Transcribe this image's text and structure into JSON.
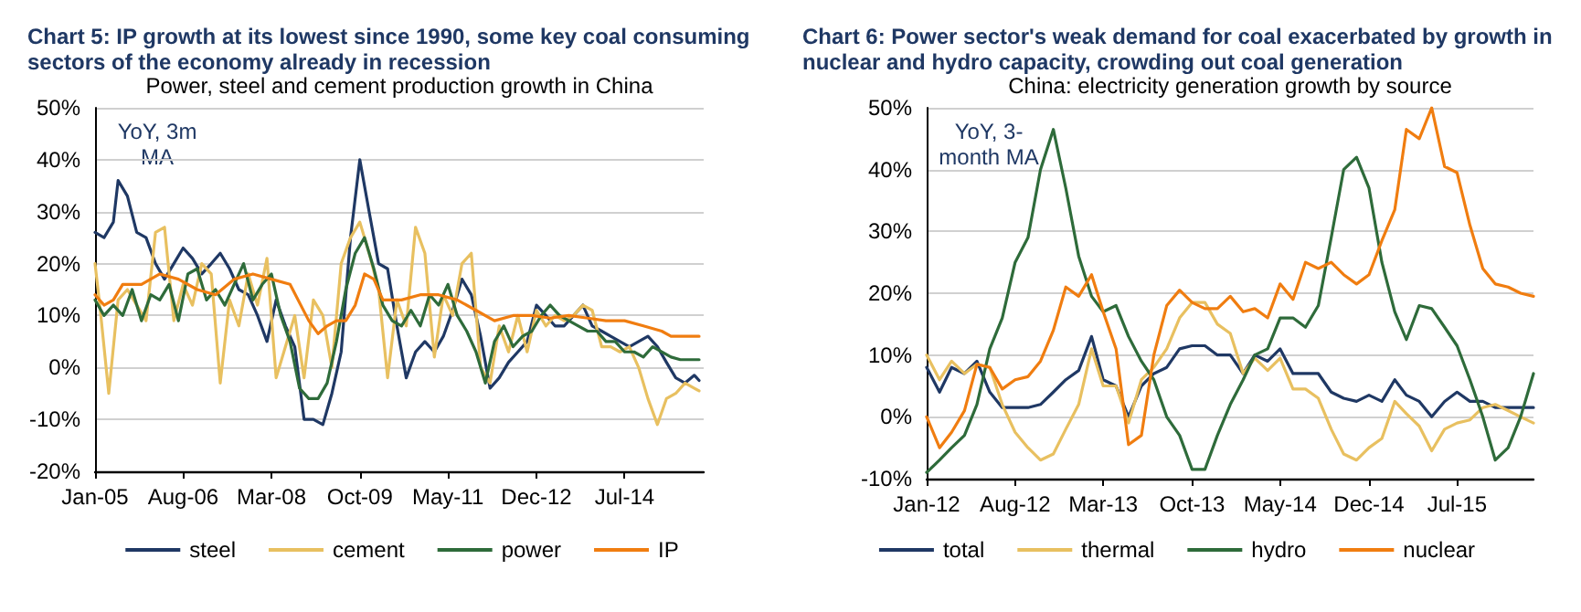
{
  "chart_data": [
    {
      "type": "line",
      "title": "Chart 5: IP growth at its lowest since 1990, some key coal consuming sectors of the economy already in recession",
      "subtitle": "Power, steel and cement production growth in China",
      "annotations": [
        "YoY, 3m\nMA"
      ],
      "xlim": [
        "2005-01",
        "2015-12"
      ],
      "xticks": [
        {
          "value": "2005-01",
          "label": "Jan-05"
        },
        {
          "value": "2006-08",
          "label": "Aug-06"
        },
        {
          "value": "2008-03",
          "label": "Mar-08"
        },
        {
          "value": "2009-10",
          "label": "Oct-09"
        },
        {
          "value": "2011-05",
          "label": "May-11"
        },
        {
          "value": "2012-12",
          "label": "Dec-12"
        },
        {
          "value": "2014-07",
          "label": "Jul-14"
        }
      ],
      "ylim": [
        -20,
        50
      ],
      "yticks": [
        {
          "value": -20,
          "label": "-20%"
        },
        {
          "value": -10,
          "label": "-10%"
        },
        {
          "value": 0,
          "label": "0%"
        },
        {
          "value": 10,
          "label": "10%"
        },
        {
          "value": 20,
          "label": "20%"
        },
        {
          "value": 30,
          "label": "30%"
        },
        {
          "value": 40,
          "label": "40%"
        },
        {
          "value": 50,
          "label": "50%"
        }
      ],
      "grid": "y",
      "legend": "bottom",
      "marker": "none",
      "line_style": "solid",
      "series": [
        {
          "name": "steel",
          "color": "#1f3864",
          "x": [
            "2005-01",
            "2005-03",
            "2005-05",
            "2005-06",
            "2005-08",
            "2005-10",
            "2005-12",
            "2006-02",
            "2006-04",
            "2006-06",
            "2006-08",
            "2006-10",
            "2006-12",
            "2007-02",
            "2007-04",
            "2007-06",
            "2007-08",
            "2007-10",
            "2007-12",
            "2008-02",
            "2008-04",
            "2008-06",
            "2008-08",
            "2008-10",
            "2008-12",
            "2009-02",
            "2009-04",
            "2009-06",
            "2009-08",
            "2009-10",
            "2009-12",
            "2010-02",
            "2010-04",
            "2010-06",
            "2010-08",
            "2010-10",
            "2010-12",
            "2011-02",
            "2011-04",
            "2011-06",
            "2011-08",
            "2011-10",
            "2011-12",
            "2012-02",
            "2012-04",
            "2012-06",
            "2012-08",
            "2012-10",
            "2012-12",
            "2013-02",
            "2013-04",
            "2013-06",
            "2013-08",
            "2013-10",
            "2013-12",
            "2014-02",
            "2014-04",
            "2014-06",
            "2014-08",
            "2014-10",
            "2014-12",
            "2015-02",
            "2015-04",
            "2015-06",
            "2015-08",
            "2015-10",
            "2015-11"
          ],
          "values": [
            26,
            25,
            28,
            36,
            33,
            26,
            25,
            20,
            17,
            20,
            23,
            21,
            18,
            20,
            22,
            19,
            15,
            14,
            10,
            5,
            13,
            8,
            4,
            -10,
            -10,
            -11,
            -5,
            3,
            25,
            40,
            30,
            20,
            19,
            8,
            -2,
            3,
            5,
            3,
            6,
            11,
            17,
            14,
            6,
            -4,
            -2,
            1,
            3,
            5,
            12,
            10,
            8,
            8,
            10,
            12,
            8,
            7,
            6,
            5,
            4,
            5,
            6,
            4,
            1,
            -2,
            -3,
            -1.5,
            -2.5
          ]
        },
        {
          "name": "cement",
          "color": "#e8c060",
          "x": [
            "2005-01",
            "2005-02",
            "2005-04",
            "2005-06",
            "2005-08",
            "2005-10",
            "2005-12",
            "2006-02",
            "2006-04",
            "2006-06",
            "2006-08",
            "2006-10",
            "2006-12",
            "2007-02",
            "2007-04",
            "2007-06",
            "2007-08",
            "2007-10",
            "2007-12",
            "2008-02",
            "2008-04",
            "2008-06",
            "2008-08",
            "2008-10",
            "2008-12",
            "2009-02",
            "2009-04",
            "2009-06",
            "2009-08",
            "2009-10",
            "2009-12",
            "2010-02",
            "2010-04",
            "2010-06",
            "2010-08",
            "2010-10",
            "2010-12",
            "2011-02",
            "2011-04",
            "2011-06",
            "2011-08",
            "2011-10",
            "2011-12",
            "2012-02",
            "2012-04",
            "2012-06",
            "2012-08",
            "2012-10",
            "2012-12",
            "2013-02",
            "2013-04",
            "2013-06",
            "2013-08",
            "2013-10",
            "2013-12",
            "2014-02",
            "2014-04",
            "2014-06",
            "2014-08",
            "2014-10",
            "2014-12",
            "2015-02",
            "2015-04",
            "2015-06",
            "2015-08",
            "2015-10",
            "2015-11"
          ],
          "values": [
            20,
            12,
            -5,
            13,
            15,
            12,
            9,
            26,
            27,
            9,
            16,
            12,
            20,
            18,
            -3,
            13,
            8,
            18,
            12,
            21,
            -2,
            4,
            10,
            -2,
            13,
            10,
            0,
            20,
            25,
            28,
            22,
            15,
            -2,
            13,
            8,
            27,
            22,
            2,
            14,
            10,
            20,
            22,
            0,
            -3,
            8,
            3,
            10,
            3,
            11,
            8,
            10,
            9,
            10,
            12,
            11,
            4,
            4,
            3,
            4,
            0,
            -6,
            -11,
            -6,
            -5,
            -3,
            -4,
            -4.5
          ]
        },
        {
          "name": "power",
          "color": "#2e6b3a",
          "x": [
            "2005-01",
            "2005-03",
            "2005-05",
            "2005-07",
            "2005-09",
            "2005-11",
            "2006-01",
            "2006-03",
            "2006-05",
            "2006-07",
            "2006-09",
            "2006-11",
            "2007-01",
            "2007-03",
            "2007-05",
            "2007-07",
            "2007-09",
            "2007-11",
            "2008-01",
            "2008-03",
            "2008-05",
            "2008-07",
            "2008-09",
            "2008-11",
            "2009-01",
            "2009-03",
            "2009-05",
            "2009-07",
            "2009-09",
            "2009-11",
            "2010-01",
            "2010-03",
            "2010-05",
            "2010-07",
            "2010-09",
            "2010-11",
            "2011-01",
            "2011-03",
            "2011-05",
            "2011-07",
            "2011-09",
            "2011-11",
            "2012-01",
            "2012-03",
            "2012-05",
            "2012-07",
            "2012-09",
            "2012-11",
            "2013-01",
            "2013-03",
            "2013-05",
            "2013-07",
            "2013-09",
            "2013-11",
            "2014-01",
            "2014-03",
            "2014-05",
            "2014-07",
            "2014-09",
            "2014-11",
            "2015-01",
            "2015-03",
            "2015-05",
            "2015-07",
            "2015-09",
            "2015-11"
          ],
          "values": [
            13,
            10,
            12,
            10,
            15,
            9,
            14,
            13,
            16,
            9,
            18,
            19,
            13,
            15,
            12,
            16,
            20,
            13,
            16,
            18,
            10,
            5,
            -4,
            -6,
            -6,
            -3,
            5,
            15,
            22,
            25,
            19,
            12,
            9,
            8,
            11,
            8,
            14,
            12,
            16,
            10,
            7,
            3,
            -3,
            5,
            8,
            4,
            6,
            7,
            10,
            12,
            10,
            9,
            8,
            7,
            7,
            5,
            5,
            3,
            3,
            2,
            4,
            3,
            2,
            1.5,
            1.5,
            1.5
          ]
        },
        {
          "name": "IP",
          "color": "#f07d10",
          "x": [
            "2005-01",
            "2005-03",
            "2005-05",
            "2005-07",
            "2005-11",
            "2006-03",
            "2006-07",
            "2006-11",
            "2007-03",
            "2007-07",
            "2007-11",
            "2008-03",
            "2008-07",
            "2008-11",
            "2009-01",
            "2009-03",
            "2009-05",
            "2009-07",
            "2009-09",
            "2009-11",
            "2010-01",
            "2010-03",
            "2010-07",
            "2010-11",
            "2011-03",
            "2011-07",
            "2011-11",
            "2012-03",
            "2012-07",
            "2012-11",
            "2013-03",
            "2013-07",
            "2013-11",
            "2014-03",
            "2014-07",
            "2014-11",
            "2015-03",
            "2015-05",
            "2015-07",
            "2015-11"
          ],
          "values": [
            14,
            12,
            13,
            16,
            16,
            18,
            17,
            15,
            14,
            17,
            18,
            17,
            16,
            9,
            6.5,
            8,
            9,
            9,
            12,
            18,
            17,
            13,
            13,
            14,
            14,
            13,
            11,
            9,
            10,
            10,
            9.5,
            10,
            9.5,
            9,
            9,
            8,
            7,
            6,
            6,
            6
          ]
        }
      ]
    },
    {
      "type": "line",
      "title": "Chart 6: Power sector's weak demand for coal exacerbated by growth in nuclear and hydro capacity, crowding out coal generation",
      "subtitle": "China: electricity generation growth by source",
      "annotations": [
        "YoY, 3-\nmonth MA"
      ],
      "x": [
        "2012-01",
        "2012-02",
        "2012-03",
        "2012-04",
        "2012-05",
        "2012-06",
        "2012-07",
        "2012-08",
        "2012-09",
        "2012-10",
        "2012-11",
        "2012-12",
        "2013-01",
        "2013-02",
        "2013-03",
        "2013-04",
        "2013-05",
        "2013-06",
        "2013-07",
        "2013-08",
        "2013-09",
        "2013-10",
        "2013-11",
        "2013-12",
        "2014-01",
        "2014-02",
        "2014-03",
        "2014-04",
        "2014-05",
        "2014-06",
        "2014-07",
        "2014-08",
        "2014-09",
        "2014-10",
        "2014-11",
        "2014-12",
        "2015-01",
        "2015-02",
        "2015-03",
        "2015-04",
        "2015-05",
        "2015-06",
        "2015-07",
        "2015-08",
        "2015-09",
        "2015-10",
        "2015-11",
        "2015-12",
        "2016-01"
      ],
      "xlim": [
        "2012-01",
        "2016-01"
      ],
      "xticks": [
        {
          "value": "2012-01",
          "label": "Jan-12"
        },
        {
          "value": "2012-08",
          "label": "Aug-12"
        },
        {
          "value": "2013-03",
          "label": "Mar-13"
        },
        {
          "value": "2013-10",
          "label": "Oct-13"
        },
        {
          "value": "2014-05",
          "label": "May-14"
        },
        {
          "value": "2014-12",
          "label": "Dec-14"
        },
        {
          "value": "2015-07",
          "label": "Jul-15"
        }
      ],
      "ylim": [
        -10,
        50
      ],
      "yticks": [
        {
          "value": -10,
          "label": "-10%"
        },
        {
          "value": 0,
          "label": "0%"
        },
        {
          "value": 10,
          "label": "10%"
        },
        {
          "value": 20,
          "label": "20%"
        },
        {
          "value": 30,
          "label": "30%"
        },
        {
          "value": 40,
          "label": "40%"
        },
        {
          "value": 50,
          "label": "50%"
        }
      ],
      "grid": "y",
      "legend": "bottom",
      "marker": "none",
      "line_style": "solid",
      "series": [
        {
          "name": "total",
          "color": "#1f3864",
          "values": [
            8,
            4,
            8,
            7,
            9,
            4,
            1.5,
            1.5,
            1.5,
            2,
            4,
            6,
            7.5,
            13,
            6,
            5,
            0,
            5,
            7,
            8,
            11,
            11.5,
            11.5,
            10,
            10,
            7,
            10,
            9,
            11,
            7,
            7,
            7,
            4,
            3,
            2.5,
            3.5,
            2.5,
            6,
            3.5,
            2.5,
            0,
            2.5,
            4,
            2.5,
            2.5,
            1.5,
            1.5,
            1.5,
            1.5
          ]
        },
        {
          "name": "thermal",
          "color": "#e8c060",
          "values": [
            10,
            6,
            9,
            7,
            8.5,
            8,
            2,
            -2.5,
            -5,
            -7,
            -6,
            -2,
            2,
            11,
            5,
            5,
            -1,
            6,
            8,
            11,
            16,
            18.5,
            18.5,
            15,
            13.5,
            7,
            9.5,
            7.5,
            9.5,
            4.5,
            4.5,
            3,
            -2,
            -6,
            -7,
            -5,
            -3.5,
            2.5,
            0.5,
            -1.5,
            -5.5,
            -2,
            -1,
            -0.5,
            1.5,
            2,
            1,
            0,
            -1
          ]
        },
        {
          "name": "hydro",
          "color": "#2e6b3a",
          "values": [
            -9,
            -7,
            -5,
            -3,
            2,
            11,
            16,
            25,
            29,
            40,
            46.5,
            37,
            26,
            19.5,
            17,
            18,
            13,
            9,
            6,
            0,
            -3,
            -8.5,
            -8.5,
            -3,
            2,
            6,
            10,
            11,
            16,
            16,
            14.5,
            18,
            29,
            40,
            42,
            37,
            25,
            17,
            12.5,
            18,
            17.5,
            14.5,
            11.5,
            6,
            0,
            -7,
            -5,
            0,
            7
          ]
        },
        {
          "name": "nuclear",
          "color": "#f07d10",
          "values": [
            0,
            -5,
            -2.5,
            1,
            8.5,
            8,
            4.5,
            6,
            6.5,
            9,
            14,
            21,
            19.5,
            23,
            17,
            11,
            -4.5,
            -3,
            10,
            18,
            20.5,
            18.5,
            17.5,
            17.5,
            19.5,
            17,
            17.5,
            16,
            21.5,
            19,
            25,
            24,
            25,
            23,
            21.5,
            23,
            28.5,
            33.5,
            46.5,
            45,
            50,
            40.5,
            39.5,
            31,
            24,
            21.5,
            21,
            20,
            19.5
          ]
        }
      ]
    }
  ]
}
